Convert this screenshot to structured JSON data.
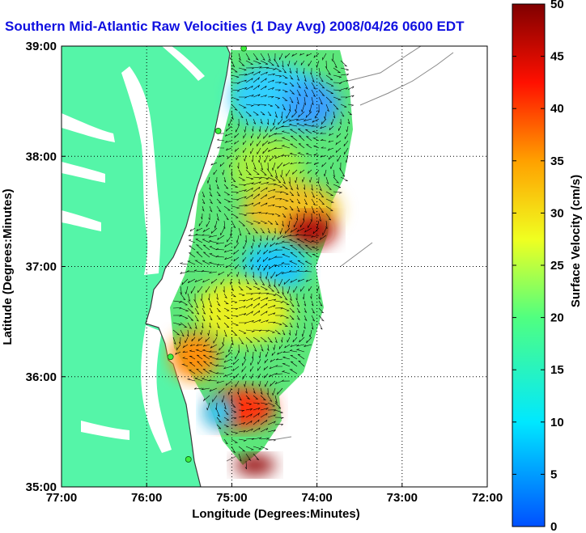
{
  "chart_data": {
    "type": "heatmap",
    "title": "Southern Mid-Atlantic Raw Velocities (1 Day Avg) 2008/04/26 0600 EDT",
    "xlabel": "Longitude (Degrees:Minutes)",
    "ylabel": "Latitude (Degrees:Minutes)",
    "xlim": [
      -77,
      -72
    ],
    "ylim": [
      35,
      39
    ],
    "x_ticks": [
      "77:00",
      "76:00",
      "75:00",
      "74:00",
      "73:00",
      "72:00"
    ],
    "y_ticks": [
      "35:00",
      "36:00",
      "37:00",
      "38:00",
      "39:00"
    ],
    "grid": true,
    "colorbar": {
      "label": "Surface Velocity (cm/s)",
      "range": [
        0,
        50
      ],
      "ticks": [
        "0",
        "5",
        "10",
        "15",
        "20",
        "25",
        "30",
        "35",
        "40",
        "45",
        "50"
      ]
    },
    "high_speed_regions": [
      {
        "lon": -74.2,
        "lat": 37.2,
        "speed": 42
      },
      {
        "lon": -74.7,
        "lat": 35.8,
        "speed": 45
      },
      {
        "lon": -74.8,
        "lat": 35.2,
        "speed": 50
      }
    ],
    "low_speed_regions": [
      {
        "lon": -74.6,
        "lat": 38.5,
        "speed": 10
      },
      {
        "lon": -74.5,
        "lat": 36.8,
        "speed": 12
      }
    ],
    "hf_radar_sites": [
      {
        "lon": -74.86,
        "lat": 38.98
      },
      {
        "lon": -75.16,
        "lat": 38.23
      },
      {
        "lon": -75.72,
        "lat": 36.18
      },
      {
        "lon": -75.51,
        "lat": 35.25
      }
    ]
  },
  "colors": {
    "land": "#55f5a8",
    "coast": "#3c3c3c",
    "title": "#1010e0",
    "arrows": "#000000"
  }
}
